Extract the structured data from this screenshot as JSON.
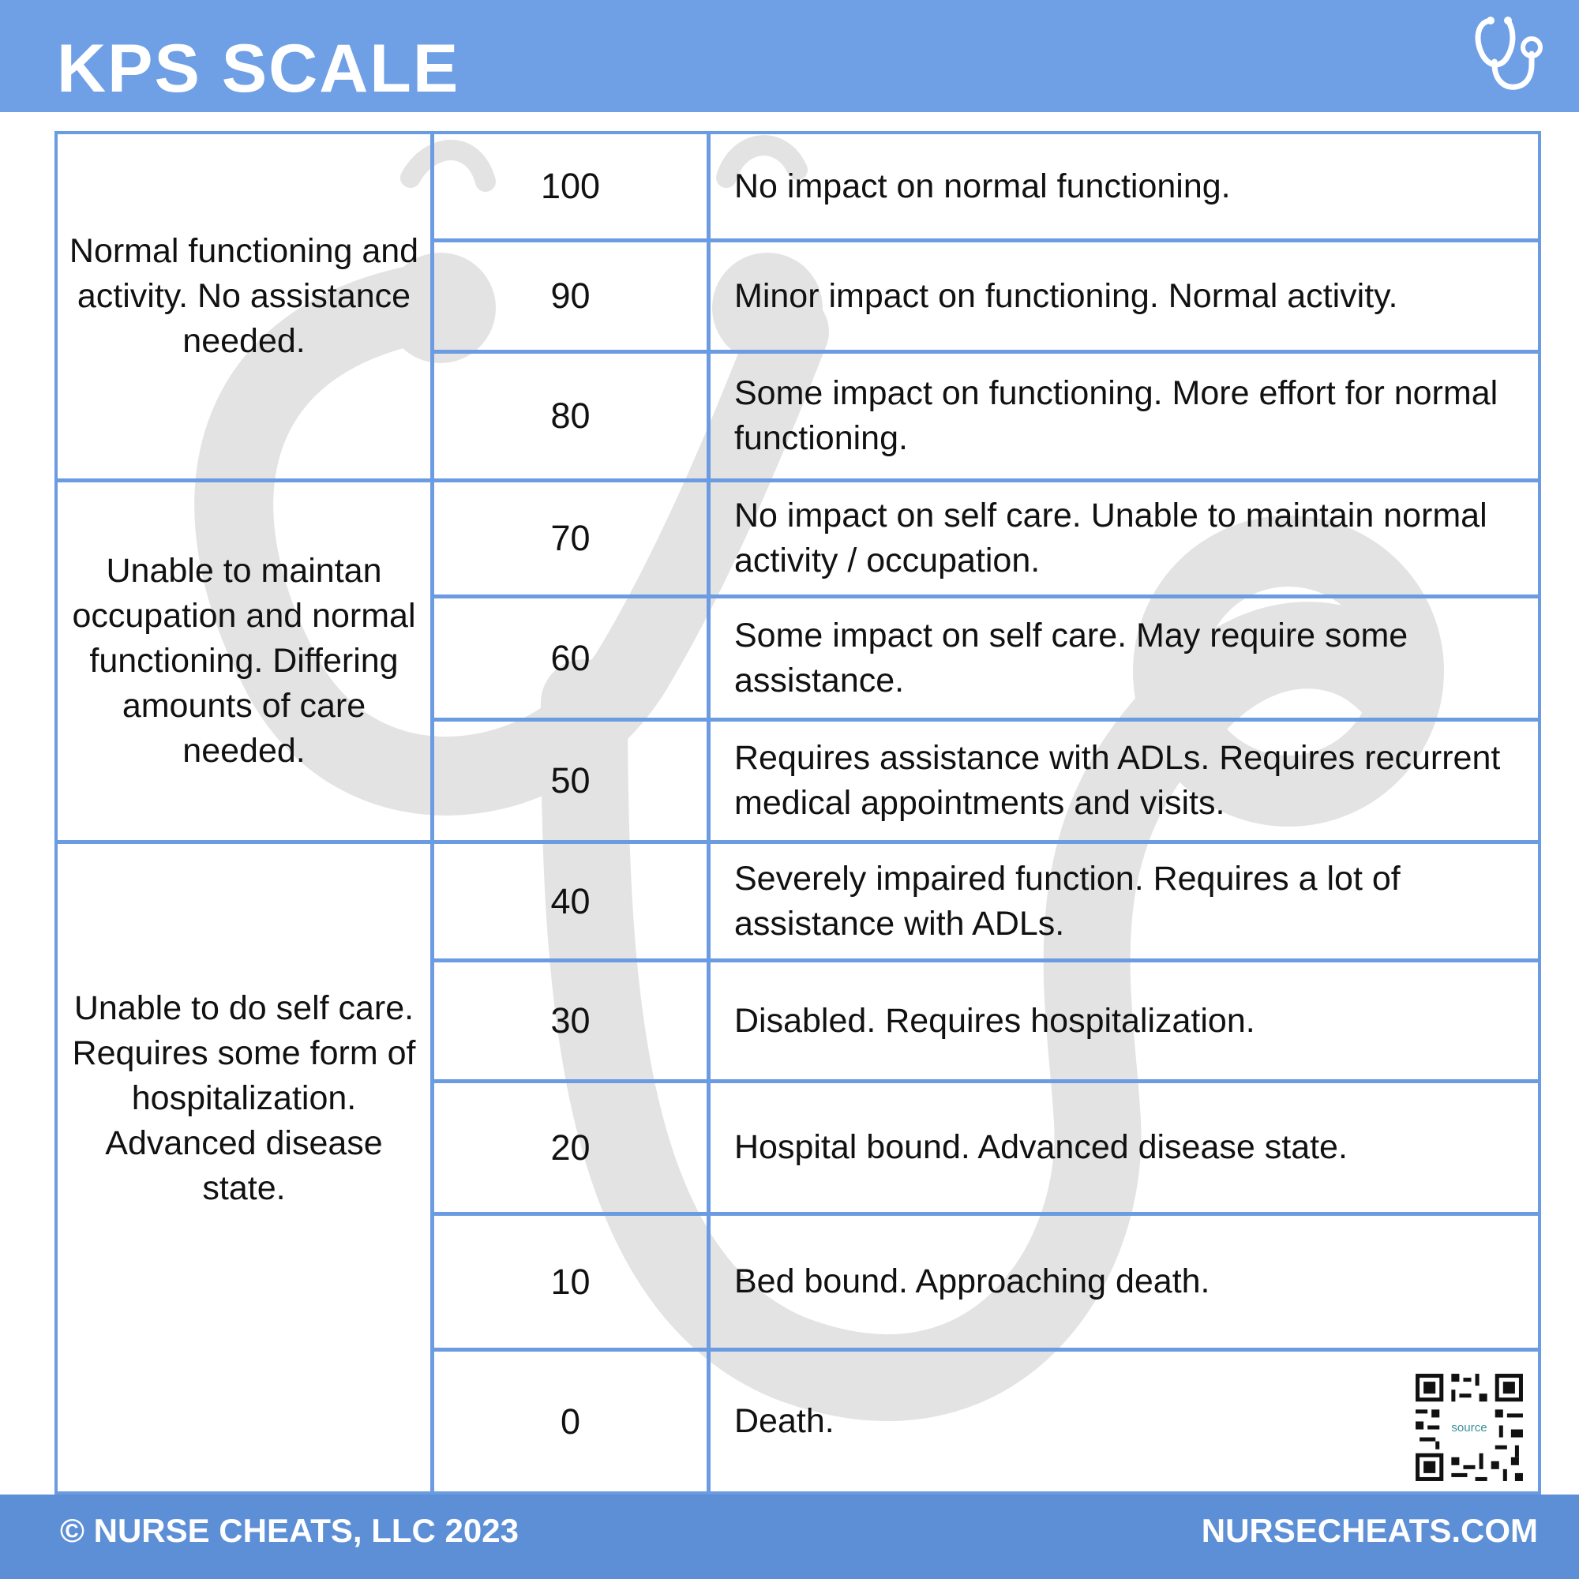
{
  "header": {
    "title": "KPS SCALE"
  },
  "icons": {
    "logo": "stethoscope-icon",
    "watermark": "stethoscope-icon",
    "qr": "qr-code-icon",
    "qr_label": "source"
  },
  "colors": {
    "header_bg": "#6fa0e6",
    "footer_bg": "#5c8fd6",
    "grid_line": "#6b9be0",
    "watermark": "#e3e3e3"
  },
  "categories": [
    {
      "label": "Normal functioning and activity. No assistance needed."
    },
    {
      "label": "Unable to maintan occupation and normal functioning. Differing amounts of care needed."
    },
    {
      "label": "Unable to do self care. Requires some form of hospitalization. Advanced disease state."
    }
  ],
  "rows": [
    {
      "score": "100",
      "description": "No impact on normal functioning."
    },
    {
      "score": "90",
      "description": "Minor impact on functioning. Normal activity."
    },
    {
      "score": "80",
      "description": "Some impact on functioning. More effort for normal functioning."
    },
    {
      "score": "70",
      "description": "No impact on self care. Unable to maintain normal activity / occupation."
    },
    {
      "score": "60",
      "description": "Some impact on self care.  May require some assistance."
    },
    {
      "score": "50",
      "description": "Requires assistance with ADLs.  Requires recurrent medical appointments and visits."
    },
    {
      "score": "40",
      "description": "Severely impaired function.  Requires a lot of assistance with ADLs."
    },
    {
      "score": "30",
      "description": "Disabled.  Requires hospitalization."
    },
    {
      "score": "20",
      "description": "Hospital bound. Advanced disease state."
    },
    {
      "score": "10",
      "description": "Bed bound.  Approaching death."
    },
    {
      "score": "0",
      "description": "Death."
    }
  ],
  "footer": {
    "copyright": "© NURSE CHEATS, LLC 2023",
    "website": "NURSECHEATS.COM"
  }
}
